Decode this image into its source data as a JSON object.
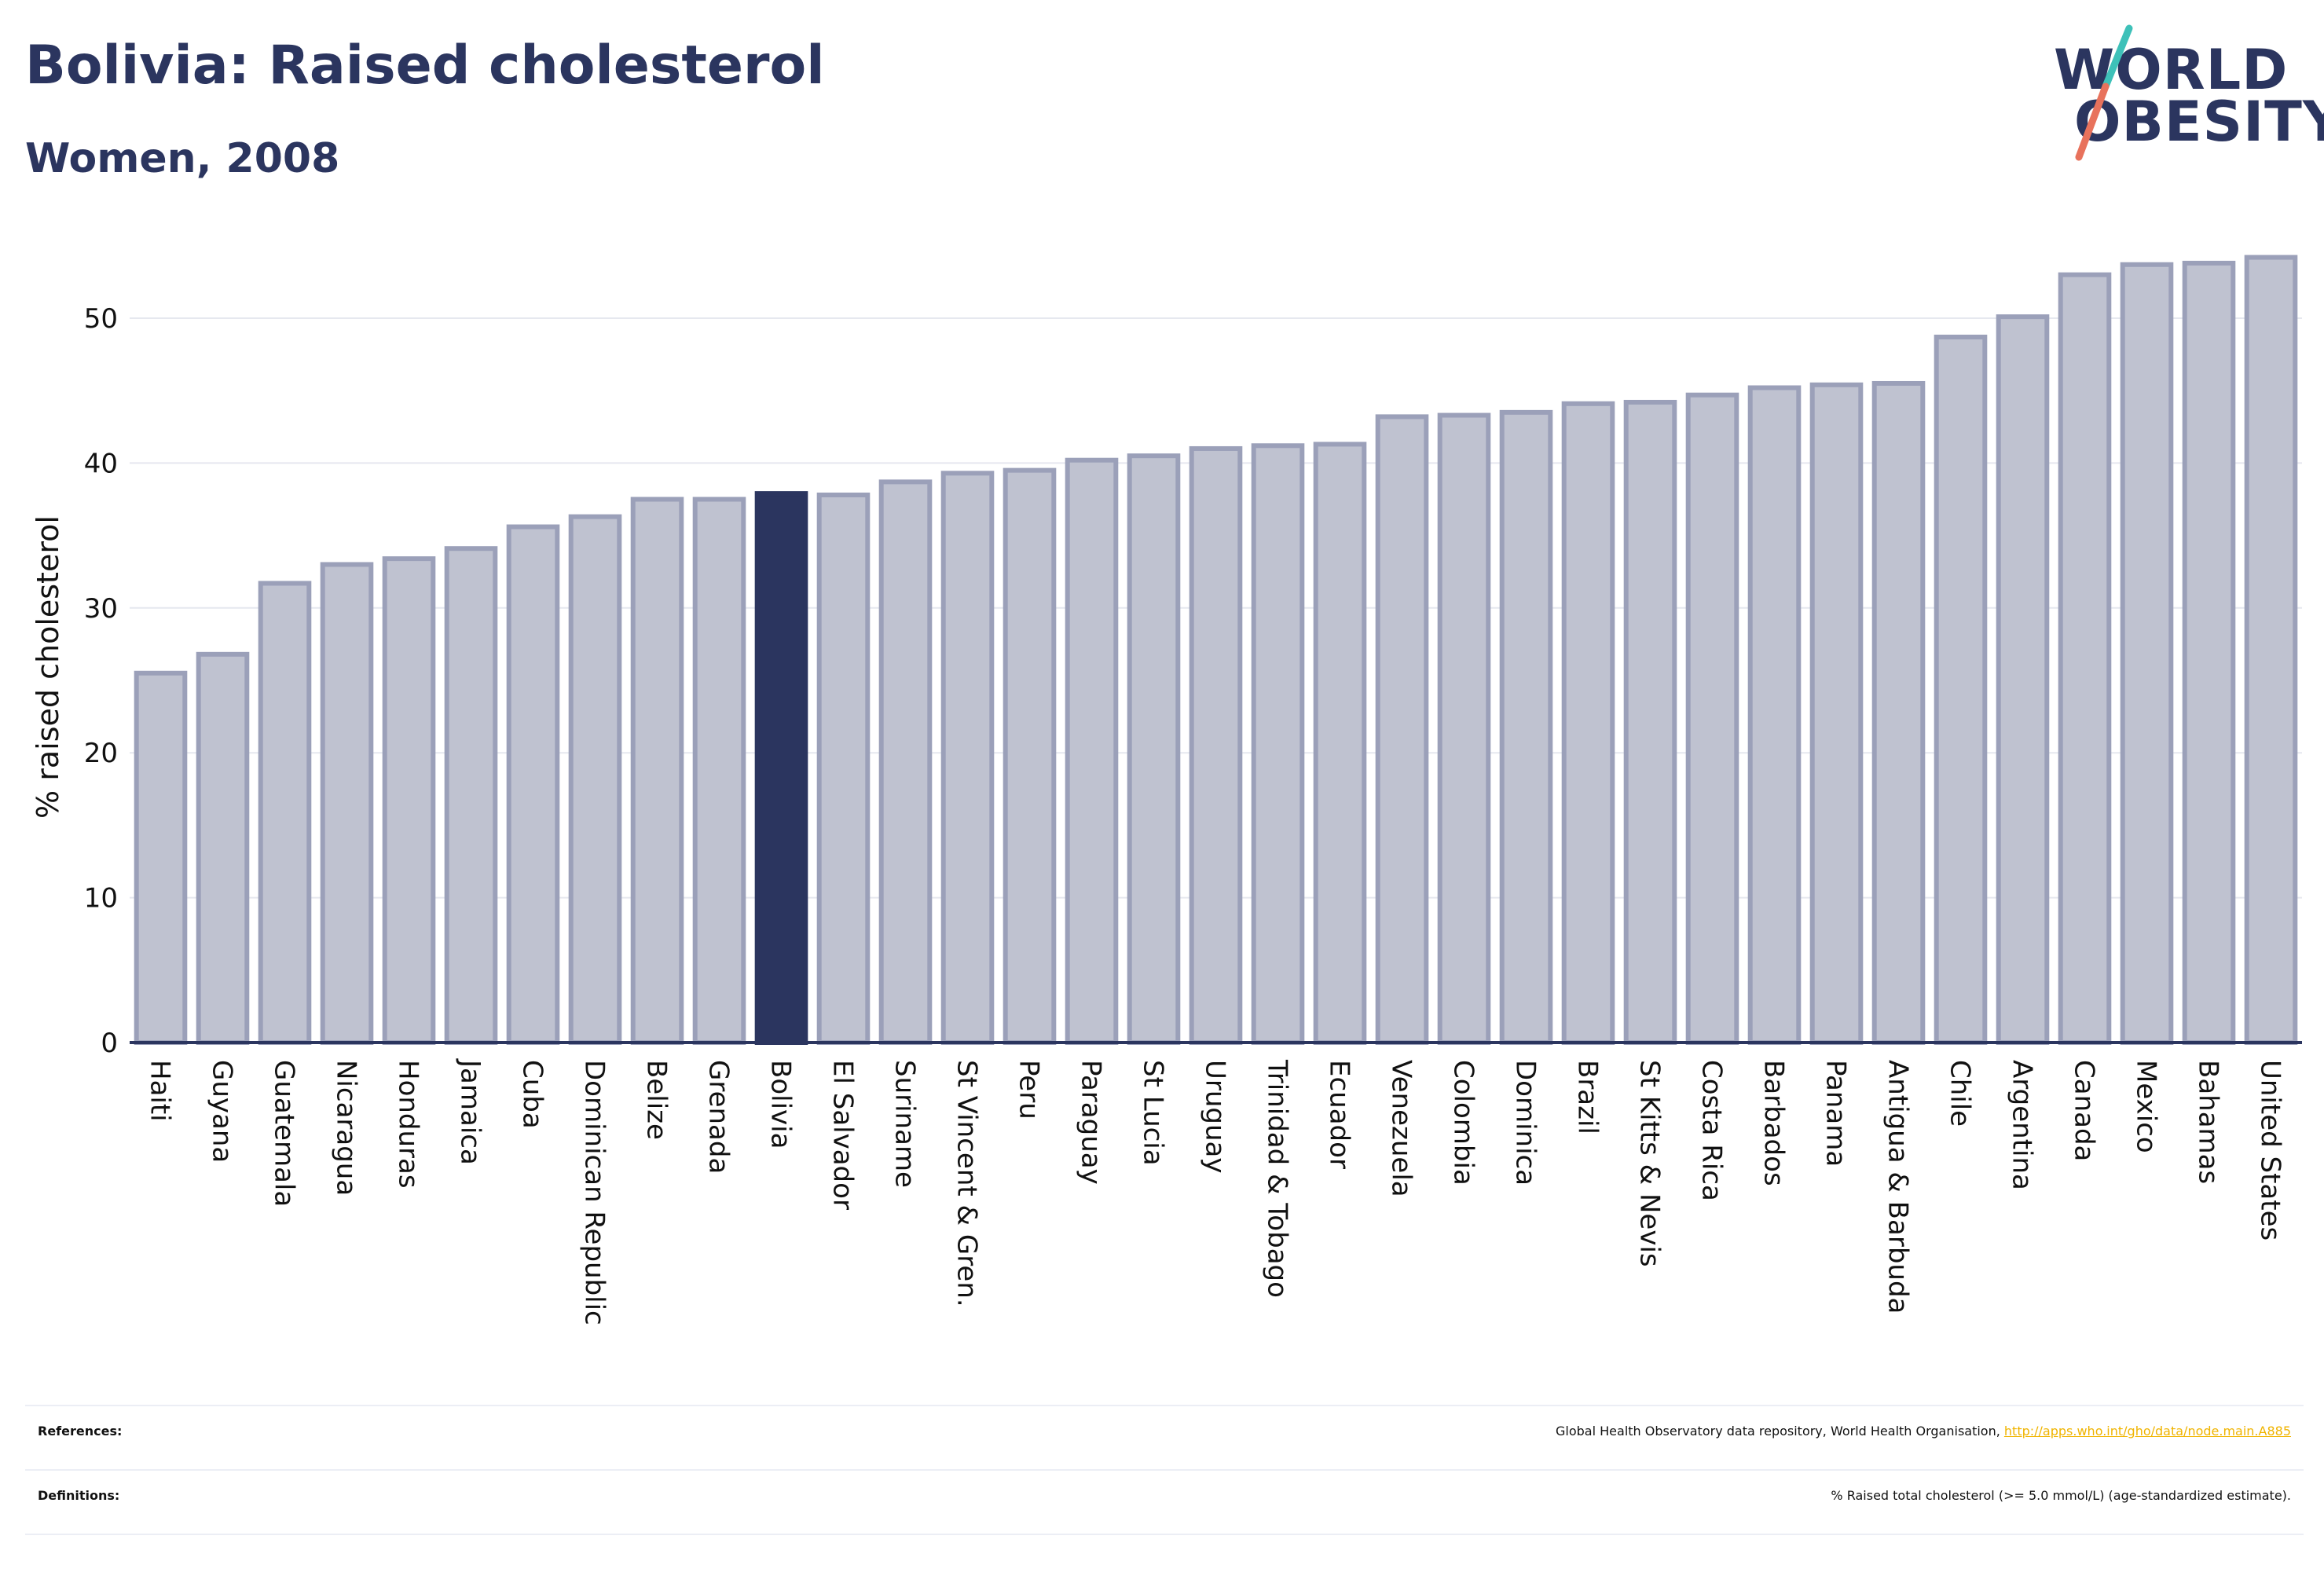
{
  "header": {
    "title": "Bolivia: Raised cholesterol",
    "subtitle": "Women, 2008"
  },
  "logo": {
    "line1": "WORLD",
    "line2": "OBESITY",
    "slash_colors": [
      "#3ec1b9",
      "#e8725c"
    ]
  },
  "colors": {
    "bar": "#bfc2d0",
    "bar_stroke": "#9ba0b9",
    "highlight": "#2b355f",
    "grid": "#e6e8ef",
    "axis": "#2b355f"
  },
  "chart_data": {
    "type": "bar",
    "ylabel": "% raised cholesterol",
    "ylim": [
      0,
      55
    ],
    "yticks": [
      0,
      10,
      20,
      30,
      40,
      50
    ],
    "highlight": "Bolivia",
    "grid": true,
    "categories": [
      "Haiti",
      "Guyana",
      "Guatemala",
      "Nicaragua",
      "Honduras",
      "Jamaica",
      "Cuba",
      "Dominican Republic",
      "Belize",
      "Grenada",
      "Bolivia",
      "El Salvador",
      "Suriname",
      "St Vincent & Gren.",
      "Peru",
      "Paraguay",
      "St Lucia",
      "Uruguay",
      "Trinidad & Tobago",
      "Ecuador",
      "Venezuela",
      "Colombia",
      "Dominica",
      "Brazil",
      "St Kitts & Nevis",
      "Costa Rica",
      "Barbados",
      "Panama",
      "Antigua & Barbuda",
      "Chile",
      "Argentina",
      "Canada",
      "Mexico",
      "Bahamas",
      "United States"
    ],
    "values": [
      25.5,
      26.8,
      31.7,
      33.0,
      33.4,
      34.1,
      35.6,
      36.3,
      37.5,
      37.5,
      37.9,
      37.8,
      38.7,
      39.3,
      39.5,
      40.2,
      40.5,
      41.0,
      41.2,
      41.3,
      43.2,
      43.3,
      43.5,
      44.1,
      44.2,
      44.7,
      45.2,
      45.4,
      45.5,
      48.7,
      50.1,
      53.0,
      53.7,
      53.8,
      54.2
    ]
  },
  "footer": {
    "references_label": "References:",
    "references_text": "Global Health Observatory data repository, World Health Organisation, ",
    "references_link": "http://apps.who.int/gho/data/node.main.A885",
    "definitions_label": "Definitions:",
    "definitions_text": "% Raised total cholesterol (>= 5.0 mmol/L) (age-standardized estimate)."
  }
}
